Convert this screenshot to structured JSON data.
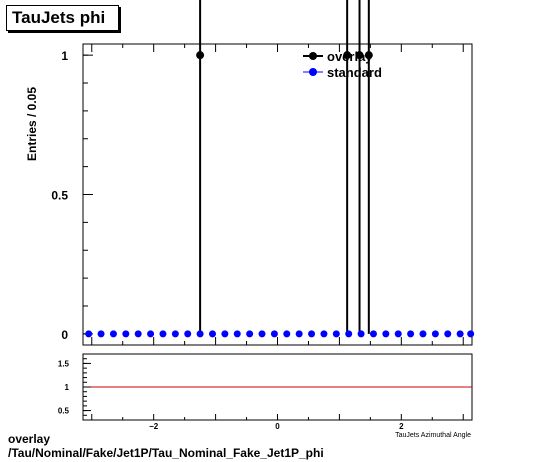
{
  "title": "TauJets phi",
  "footer": {
    "line1": "overlay",
    "line2": "/Tau/Nominal/Fake/Jet1P/Tau_Nominal_Fake_Jet1P_phi"
  },
  "colors": {
    "overlay": "#000000",
    "standard": "#0000ff",
    "ratio_line": "#cc0000"
  },
  "chart_data": [
    {
      "type": "scatter",
      "title": "TauJets phi",
      "ylabel": "Entries / 0.05",
      "xlim": [
        -3.1416,
        3.1416
      ],
      "ylim": [
        -0.04,
        1.04
      ],
      "yticks": [
        {
          "v": 0,
          "label": "0"
        },
        {
          "v": 0.5,
          "label": "0.5"
        },
        {
          "v": 1,
          "label": "1"
        }
      ],
      "legend": {
        "placement": "top-right",
        "entries": [
          {
            "series": "overlay",
            "label": "overlay"
          },
          {
            "series": "standard",
            "label": "standard"
          }
        ]
      },
      "series": [
        {
          "name": "overlay",
          "color": "#000000",
          "points": [
            {
              "x": -1.25,
              "y": 1
            },
            {
              "x": 1.125,
              "y": 1
            },
            {
              "x": 1.325,
              "y": 1
            },
            {
              "x": 1.475,
              "y": 1
            }
          ],
          "errors": [
            1,
            1,
            1,
            1
          ]
        },
        {
          "name": "standard",
          "color": "#0000ff",
          "x": [
            -3.05,
            -2.85,
            -2.65,
            -2.45,
            -2.25,
            -2.05,
            -1.85,
            -1.65,
            -1.45,
            -1.25,
            -1.05,
            -0.85,
            -0.65,
            -0.45,
            -0.25,
            -0.05,
            0.15,
            0.35,
            0.55,
            0.75,
            0.95,
            1.15,
            1.35,
            1.55,
            1.75,
            1.95,
            2.15,
            2.35,
            2.55,
            2.75,
            2.95,
            3.12
          ],
          "y": [
            0,
            0,
            0,
            0,
            0,
            0,
            0,
            0,
            0,
            0,
            0,
            0,
            0,
            0,
            0,
            0,
            0,
            0,
            0,
            0,
            0,
            0,
            0,
            0,
            0,
            0,
            0,
            0,
            0,
            0,
            0,
            0
          ]
        }
      ]
    },
    {
      "type": "line",
      "xlabel": "TauJets Azimuthal Angle",
      "xlim": [
        -3.1416,
        3.1416
      ],
      "ylim": [
        0.3,
        1.7
      ],
      "xticks": [
        {
          "v": -2,
          "label": "−2"
        },
        {
          "v": 0,
          "label": "0"
        },
        {
          "v": 2,
          "label": "2"
        }
      ],
      "yticks": [
        {
          "v": 0.5,
          "label": "0.5"
        },
        {
          "v": 1,
          "label": "1"
        },
        {
          "v": 1.5,
          "label": "1.5"
        }
      ],
      "reference_line": {
        "y": 1
      }
    }
  ]
}
